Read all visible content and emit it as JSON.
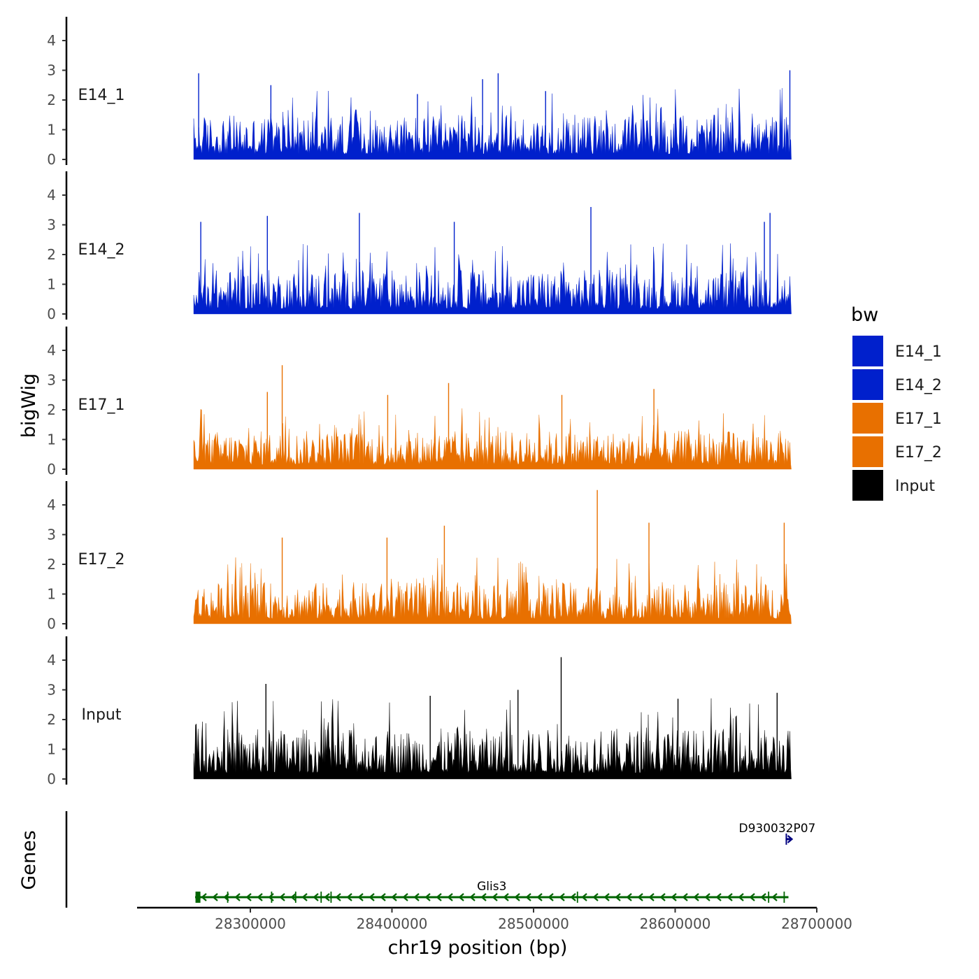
{
  "chart_data": {
    "type": "area",
    "x_axis": {
      "title": "chr19 position (bp)",
      "range": [
        28220000,
        28700000
      ],
      "ticks": [
        28300000,
        28400000,
        28500000,
        28600000,
        28700000
      ],
      "tick_labels": [
        "28300000",
        "28400000",
        "28500000",
        "28600000",
        "28700000"
      ]
    },
    "y_axis": {
      "title": "bigWig",
      "range": [
        0,
        4.8
      ],
      "ticks": [
        0,
        1,
        2,
        3,
        4
      ],
      "tick_labels": [
        "0",
        "1",
        "2",
        "3",
        "4"
      ]
    },
    "data_range": [
      28260000,
      28682000
    ],
    "tracks": [
      {
        "name": "E14_1",
        "color": "#0020CC",
        "typical_max": 1.5,
        "peaks": [
          {
            "x": 28263500,
            "y": 2.9
          },
          {
            "x": 28314500,
            "y": 2.5
          },
          {
            "x": 28418000,
            "y": 2.2
          },
          {
            "x": 28464000,
            "y": 2.7
          },
          {
            "x": 28475000,
            "y": 2.9
          },
          {
            "x": 28508500,
            "y": 2.3
          },
          {
            "x": 28681000,
            "y": 3.0
          }
        ]
      },
      {
        "name": "E14_2",
        "color": "#0020CC",
        "typical_max": 1.5,
        "peaks": [
          {
            "x": 28265000,
            "y": 3.1
          },
          {
            "x": 28312000,
            "y": 3.3
          },
          {
            "x": 28377000,
            "y": 3.4
          },
          {
            "x": 28444000,
            "y": 3.1
          },
          {
            "x": 28540500,
            "y": 3.6
          },
          {
            "x": 28663000,
            "y": 3.1
          },
          {
            "x": 28667000,
            "y": 3.4
          }
        ]
      },
      {
        "name": "E17_1",
        "color": "#E87000",
        "typical_max": 1.3,
        "peaks": [
          {
            "x": 28312000,
            "y": 2.6
          },
          {
            "x": 28322500,
            "y": 3.5
          },
          {
            "x": 28397000,
            "y": 2.5
          },
          {
            "x": 28440000,
            "y": 2.9
          },
          {
            "x": 28520000,
            "y": 2.5
          },
          {
            "x": 28585000,
            "y": 2.7
          }
        ]
      },
      {
        "name": "E17_2",
        "color": "#E87000",
        "typical_max": 1.4,
        "peaks": [
          {
            "x": 28322500,
            "y": 2.9
          },
          {
            "x": 28396500,
            "y": 2.9
          },
          {
            "x": 28437000,
            "y": 3.3
          },
          {
            "x": 28545000,
            "y": 4.5
          },
          {
            "x": 28581500,
            "y": 3.4
          },
          {
            "x": 28677000,
            "y": 3.4
          }
        ]
      },
      {
        "name": "Input",
        "color": "#000000",
        "typical_max": 1.7,
        "peaks": [
          {
            "x": 28311000,
            "y": 3.2
          },
          {
            "x": 28427000,
            "y": 2.8
          },
          {
            "x": 28489000,
            "y": 3.0
          },
          {
            "x": 28519500,
            "y": 4.1
          },
          {
            "x": 28602000,
            "y": 2.7
          },
          {
            "x": 28672000,
            "y": 2.9
          }
        ]
      }
    ],
    "legend": {
      "title": "bw",
      "position": "right",
      "entries": [
        {
          "label": "E14_1",
          "color": "#0020CC"
        },
        {
          "label": "E14_2",
          "color": "#0020CC"
        },
        {
          "label": "E17_1",
          "color": "#E87000"
        },
        {
          "label": "E17_2",
          "color": "#E87000"
        },
        {
          "label": "Input",
          "color": "#000000"
        }
      ]
    },
    "genes_track": {
      "title": "Genes",
      "genes": [
        {
          "name": "Glis3",
          "start": 28261000,
          "end": 28680000,
          "strand": "-",
          "color": "#006400",
          "exons": [
            28262500,
            28263500,
            28284000,
            28315000,
            28332000,
            28350000,
            28357000,
            28531000,
            28666000,
            28677000
          ]
        },
        {
          "name": "D930032P07",
          "start": 28678000,
          "end": 28681500,
          "strand": "+",
          "color": "#000080",
          "exons": [
            28678500
          ]
        }
      ]
    }
  }
}
